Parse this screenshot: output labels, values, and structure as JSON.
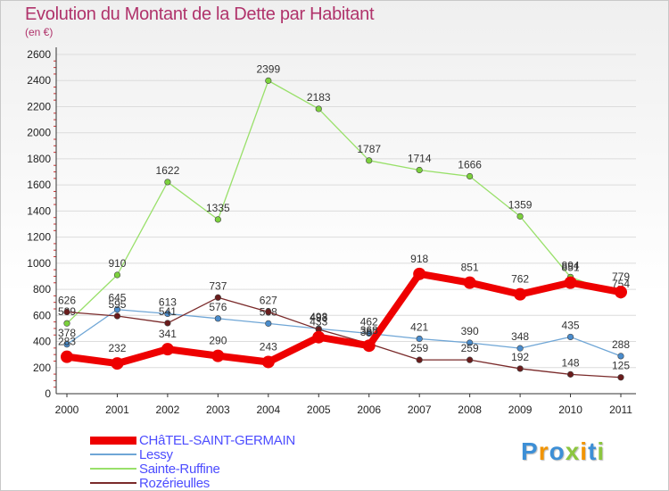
{
  "title": "Evolution du Montant de la Dette par Habitant",
  "subtitle": "(en €)",
  "logo": {
    "text": "Proxiti",
    "colors": [
      "#3d8fd6",
      "#f29400",
      "#3d8fd6",
      "#8cc63f",
      "#f29400",
      "#3d8fd6",
      "#8cc63f"
    ]
  },
  "chart_data": {
    "type": "line",
    "x": [
      "2000",
      "2001",
      "2002",
      "2003",
      "2004",
      "2005",
      "2006",
      "2007",
      "2008",
      "2009",
      "2010",
      "2011"
    ],
    "ylim": [
      0,
      2600
    ],
    "yticks": [
      "0",
      "200",
      "400",
      "600",
      "800",
      "1000",
      "1200",
      "1400",
      "1600",
      "1800",
      "2000",
      "2200",
      "2400",
      "2600"
    ],
    "grid": true,
    "legend": "bottom-left",
    "series": [
      {
        "name": "Lessy",
        "color": "#6fa6d6",
        "marker": "#4a8ccc",
        "width": 1.3,
        "values": [
          378,
          645,
          613,
          576,
          538,
          498,
          462,
          421,
          390,
          348,
          435,
          288
        ]
      },
      {
        "name": "Sainte-Ruffine",
        "color": "#99e06a",
        "marker": "#7cd13d",
        "width": 1.3,
        "values": [
          539,
          910,
          1622,
          1335,
          2399,
          2183,
          1787,
          1714,
          1666,
          1359,
          894,
          754
        ]
      },
      {
        "name": "Rozérieulles",
        "color": "#7a2a2a",
        "marker": "#6a1c1c",
        "width": 1.3,
        "values": [
          626,
          595,
          541,
          737,
          627,
          493,
          383,
          259,
          259,
          192,
          148,
          125
        ]
      },
      {
        "name": "CHâTEL-SAINT-GERMAIN",
        "color": "#ee0000",
        "marker": "#ee0000",
        "width": 8,
        "bold": true,
        "values": [
          283,
          232,
          341,
          290,
          243,
          433,
          368,
          918,
          851,
          762,
          851,
          779
        ]
      }
    ],
    "legend_order": [
      "CHâTEL-SAINT-GERMAIN",
      "Lessy",
      "Sainte-Ruffine",
      "Rozérieulles"
    ]
  }
}
